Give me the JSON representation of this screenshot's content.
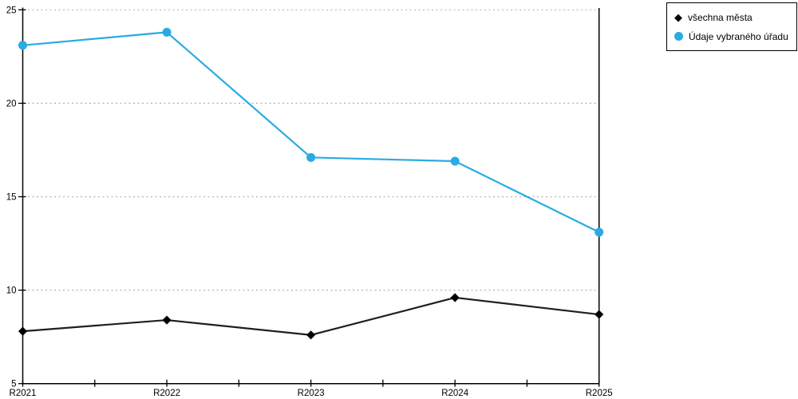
{
  "chart_data": {
    "type": "line",
    "categories": [
      "R2021",
      "R2022",
      "R2023",
      "R2024",
      "R2025"
    ],
    "series": [
      {
        "name": "všechna města",
        "values": [
          7.8,
          8.4,
          7.6,
          9.6,
          8.7
        ],
        "color": "#1f1f1f",
        "marker_color": "#000000",
        "marker": "diamond"
      },
      {
        "name": "Údaje vybraného úřadu",
        "values": [
          23.1,
          23.8,
          17.1,
          16.9,
          13.1
        ],
        "color": "#29ABE2",
        "marker_color": "#29ABE2",
        "marker": "circle"
      }
    ],
    "ylim": [
      5,
      25
    ],
    "yticks": [
      5,
      10,
      15,
      20,
      25
    ],
    "ytick_labels": [
      "5",
      "10",
      "15",
      "20",
      "25"
    ],
    "x_minor_ticks": true,
    "grid": "horizontal-dotted",
    "legend_position": "top-right",
    "title": "",
    "xlabel": "",
    "ylabel": ""
  },
  "colors": {
    "background": "#ffffff",
    "grid": "#b3b3b3",
    "axis": "#000000",
    "tick_label": "#000000"
  }
}
